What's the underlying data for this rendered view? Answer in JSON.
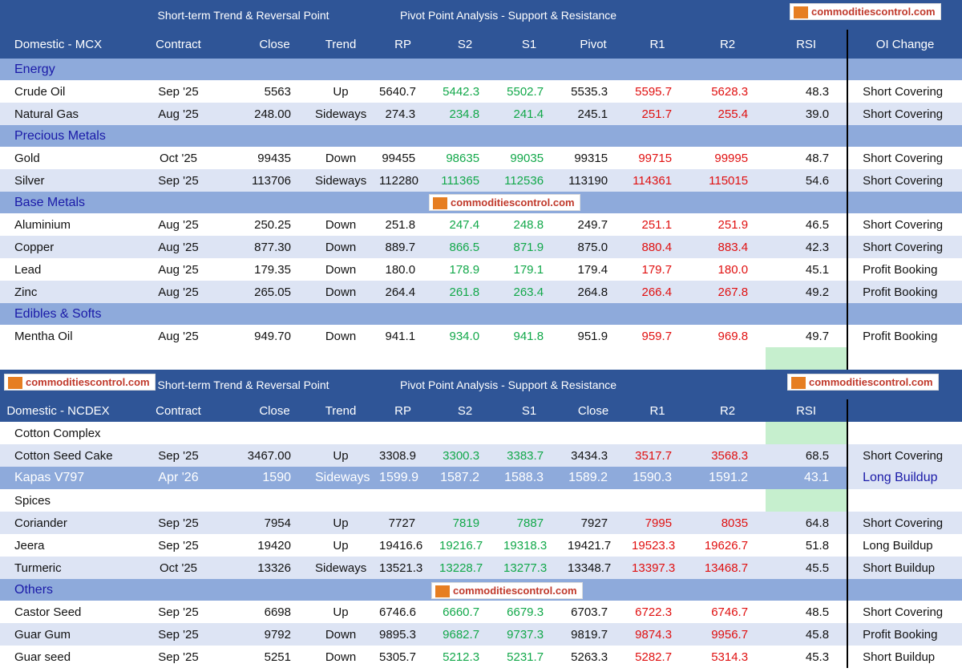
{
  "sections": [
    {
      "banner": [
        "Short-term Trend & Reversal Point",
        "Pivot Point Analysis - Support & Resistance"
      ],
      "header": [
        "Domestic - MCX",
        "Contract",
        "Close",
        "Trend",
        "RP",
        "S2",
        "S1",
        "Pivot",
        "R1",
        "R2",
        "RSI",
        "OI Change"
      ],
      "rows": [
        {
          "group": "Energy"
        },
        [
          "Crude Oil",
          "Sep '25",
          "5563",
          "Up",
          "5640.7",
          "5442.3",
          "5502.7",
          "5535.3",
          "5595.7",
          "5628.3",
          "48.3",
          "Short Covering"
        ],
        [
          "Natural Gas",
          "Aug '25",
          "248.00",
          "Sideways",
          "274.3",
          "234.8",
          "241.4",
          "245.1",
          "251.7",
          "255.4",
          "39.0",
          "Short Covering"
        ],
        {
          "group": "Precious Metals"
        },
        [
          "Gold",
          "Oct '25",
          "99435",
          "Down",
          "99455",
          "98635",
          "99035",
          "99315",
          "99715",
          "99995",
          "48.7",
          "Short Covering"
        ],
        [
          "Silver",
          "Sep '25",
          "113706",
          "Sideways",
          "112280",
          "111365",
          "112536",
          "113190",
          "114361",
          "115015",
          "54.6",
          "Short Covering"
        ],
        {
          "group": "Base Metals"
        },
        [
          "Aluminium",
          "Aug '25",
          "250.25",
          "Down",
          "251.8",
          "247.4",
          "248.8",
          "249.7",
          "251.1",
          "251.9",
          "46.5",
          "Short Covering"
        ],
        [
          "Copper",
          "Aug '25",
          "877.30",
          "Down",
          "889.7",
          "866.5",
          "871.9",
          "875.0",
          "880.4",
          "883.4",
          "42.3",
          "Short Covering"
        ],
        [
          "Lead",
          "Aug '25",
          "179.35",
          "Down",
          "180.0",
          "178.9",
          "179.1",
          "179.4",
          "179.7",
          "180.0",
          "45.1",
          "Profit Booking"
        ],
        [
          "Zinc",
          "Aug '25",
          "265.05",
          "Down",
          "264.4",
          "261.8",
          "263.4",
          "264.8",
          "266.4",
          "267.8",
          "49.2",
          "Profit Booking"
        ],
        {
          "group": "Edibles & Softs"
        },
        [
          "Mentha Oil",
          "Aug '25",
          "949.70",
          "Down",
          "941.1",
          "934.0",
          "941.8",
          "951.9",
          "959.7",
          "969.8",
          "49.7",
          "Profit Booking"
        ]
      ]
    },
    {
      "banner": [
        "Short-term Trend & Reversal Point",
        "Pivot Point Analysis - Support & Resistance"
      ],
      "header": [
        "Domestic - NCDEX",
        "Contract",
        "Close",
        "Trend",
        "RP",
        "S2",
        "S1",
        "Close",
        "R1",
        "R2",
        "RSI",
        ""
      ],
      "rows": [
        {
          "label": "Cotton Complex"
        },
        [
          "Cotton Seed Cake",
          "Sep '25",
          "3467.00",
          "Up",
          "3308.9",
          "3300.3",
          "3383.7",
          "3434.3",
          "3517.7",
          "3568.3",
          "68.5",
          "Short Covering"
        ],
        {
          "highlight": [
            "Kapas V797",
            "Apr '26",
            "1590",
            "Sideways",
            "1599.9",
            "1587.2",
            "1588.3",
            "1589.2",
            "1590.3",
            "1591.2",
            "43.1",
            "Long Buildup"
          ]
        },
        {
          "label": "Spices"
        },
        [
          "Coriander",
          "Sep '25",
          "7954",
          "Up",
          "7727",
          "7819",
          "7887",
          "7927",
          "7995",
          "8035",
          "64.8",
          "Short Covering"
        ],
        [
          "Jeera",
          "Sep '25",
          "19420",
          "Up",
          "19416.6",
          "19216.7",
          "19318.3",
          "19421.7",
          "19523.3",
          "19626.7",
          "51.8",
          "Long Buildup"
        ],
        [
          "Turmeric",
          "Oct '25",
          "13326",
          "Sideways",
          "13521.3",
          "13228.7",
          "13277.3",
          "13348.7",
          "13397.3",
          "13468.7",
          "45.5",
          "Short Buildup"
        ],
        {
          "group": "Others"
        },
        [
          "Castor Seed",
          "Sep '25",
          "6698",
          "Up",
          "6746.6",
          "6660.7",
          "6679.3",
          "6703.7",
          "6722.3",
          "6746.7",
          "48.5",
          "Short Covering"
        ],
        [
          "Guar Gum",
          "Sep '25",
          "9792",
          "Down",
          "9895.3",
          "9682.7",
          "9737.3",
          "9819.7",
          "9874.3",
          "9956.7",
          "45.8",
          "Profit Booking"
        ],
        [
          "Guar seed",
          "Sep '25",
          "5251",
          "Down",
          "5305.7",
          "5212.3",
          "5231.7",
          "5263.3",
          "5282.7",
          "5314.3",
          "45.3",
          "Short Buildup"
        ]
      ]
    }
  ],
  "logo": "commoditiescontrol.com"
}
